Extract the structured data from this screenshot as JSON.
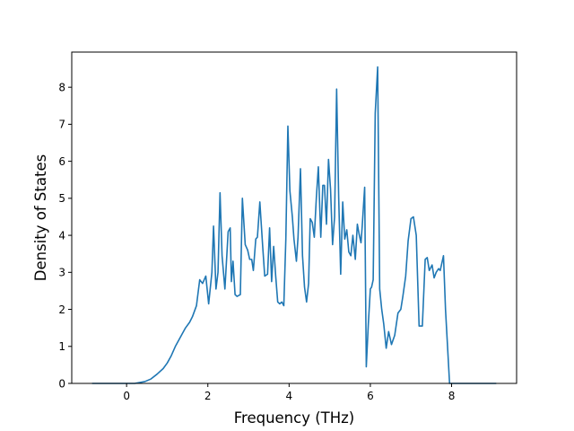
{
  "chart_data": {
    "type": "line",
    "title": "",
    "xlabel": "Frequency (THz)",
    "ylabel": "Density of States",
    "xlim": [
      -1.35,
      9.6
    ],
    "ylim": [
      0,
      8.95
    ],
    "xticks": [
      0,
      2,
      4,
      6,
      8
    ],
    "yticks": [
      0,
      1,
      2,
      3,
      4,
      5,
      6,
      7,
      8
    ],
    "grid": false,
    "legend": "none",
    "colors": {
      "line": "#1f77b4",
      "axes": "#000000",
      "background": "#ffffff"
    },
    "series": [
      {
        "x": [
          -0.85,
          0.2,
          0.45,
          0.6,
          0.75,
          0.9,
          1.0,
          1.1,
          1.2,
          1.35,
          1.45,
          1.55,
          1.62,
          1.72,
          1.8,
          1.87,
          1.95,
          2.02,
          2.1,
          2.14,
          2.2,
          2.25,
          2.3,
          2.35,
          2.42,
          2.5,
          2.55,
          2.58,
          2.62,
          2.67,
          2.72,
          2.8,
          2.85,
          2.92,
          2.98,
          3.03,
          3.08,
          3.12,
          3.18,
          3.22,
          3.28,
          3.35,
          3.4,
          3.47,
          3.52,
          3.57,
          3.62,
          3.67,
          3.72,
          3.77,
          3.82,
          3.87,
          3.92,
          3.97,
          4.02,
          4.08,
          4.12,
          4.18,
          4.22,
          4.28,
          4.33,
          4.38,
          4.43,
          4.48,
          4.52,
          4.57,
          4.62,
          4.67,
          4.72,
          4.78,
          4.83,
          4.87,
          4.92,
          4.97,
          5.02,
          5.07,
          5.12,
          5.17,
          5.22,
          5.27,
          5.32,
          5.37,
          5.42,
          5.47,
          5.52,
          5.57,
          5.63,
          5.68,
          5.72,
          5.77,
          5.8,
          5.86,
          5.9,
          5.95,
          6.0,
          6.03,
          6.07,
          6.12,
          6.18,
          6.23,
          6.28,
          6.33,
          6.39,
          6.45,
          6.52,
          6.6,
          6.68,
          6.75,
          6.8,
          6.87,
          6.93,
          7.0,
          7.06,
          7.13,
          7.2,
          7.28,
          7.35,
          7.4,
          7.45,
          7.52,
          7.57,
          7.62,
          7.68,
          7.72,
          7.8,
          7.85,
          7.9,
          7.95,
          8.0,
          8.03,
          8.07,
          8.12,
          8.2,
          8.25,
          8.3,
          9.1
        ],
        "values": [
          0,
          0,
          0.05,
          0.12,
          0.25,
          0.4,
          0.55,
          0.75,
          1.0,
          1.3,
          1.5,
          1.65,
          1.8,
          2.1,
          2.8,
          2.7,
          2.9,
          2.15,
          3.0,
          4.25,
          2.55,
          3.0,
          5.15,
          3.45,
          2.55,
          4.1,
          4.2,
          2.75,
          3.3,
          2.4,
          2.35,
          2.4,
          5.0,
          3.75,
          3.6,
          3.35,
          3.35,
          3.05,
          3.9,
          3.95,
          4.9,
          3.7,
          2.9,
          2.95,
          4.2,
          2.75,
          3.7,
          2.9,
          2.2,
          2.15,
          2.2,
          2.1,
          3.9,
          6.95,
          5.2,
          4.5,
          3.9,
          3.3,
          3.95,
          5.8,
          3.45,
          2.6,
          2.2,
          2.7,
          4.45,
          4.35,
          3.95,
          5.0,
          5.85,
          3.95,
          5.35,
          5.35,
          4.3,
          6.05,
          5.25,
          3.75,
          4.5,
          7.95,
          5.05,
          2.95,
          4.9,
          3.9,
          4.15,
          3.55,
          3.45,
          4.0,
          3.35,
          4.3,
          4.05,
          3.8,
          4.25,
          5.3,
          0.45,
          1.6,
          2.55,
          2.6,
          2.8,
          7.3,
          8.55,
          2.55,
          2.0,
          1.6,
          0.95,
          1.4,
          1.05,
          1.3,
          1.9,
          2.0,
          2.35,
          2.9,
          3.85,
          4.45,
          4.5,
          4.0,
          1.55,
          1.55,
          3.35,
          3.4,
          3.05,
          3.2,
          2.85,
          3.0,
          3.1,
          3.05,
          3.45,
          2.0,
          1.0,
          0,
          0,
          0,
          0,
          0,
          0,
          0,
          0,
          0
        ]
      }
    ]
  }
}
